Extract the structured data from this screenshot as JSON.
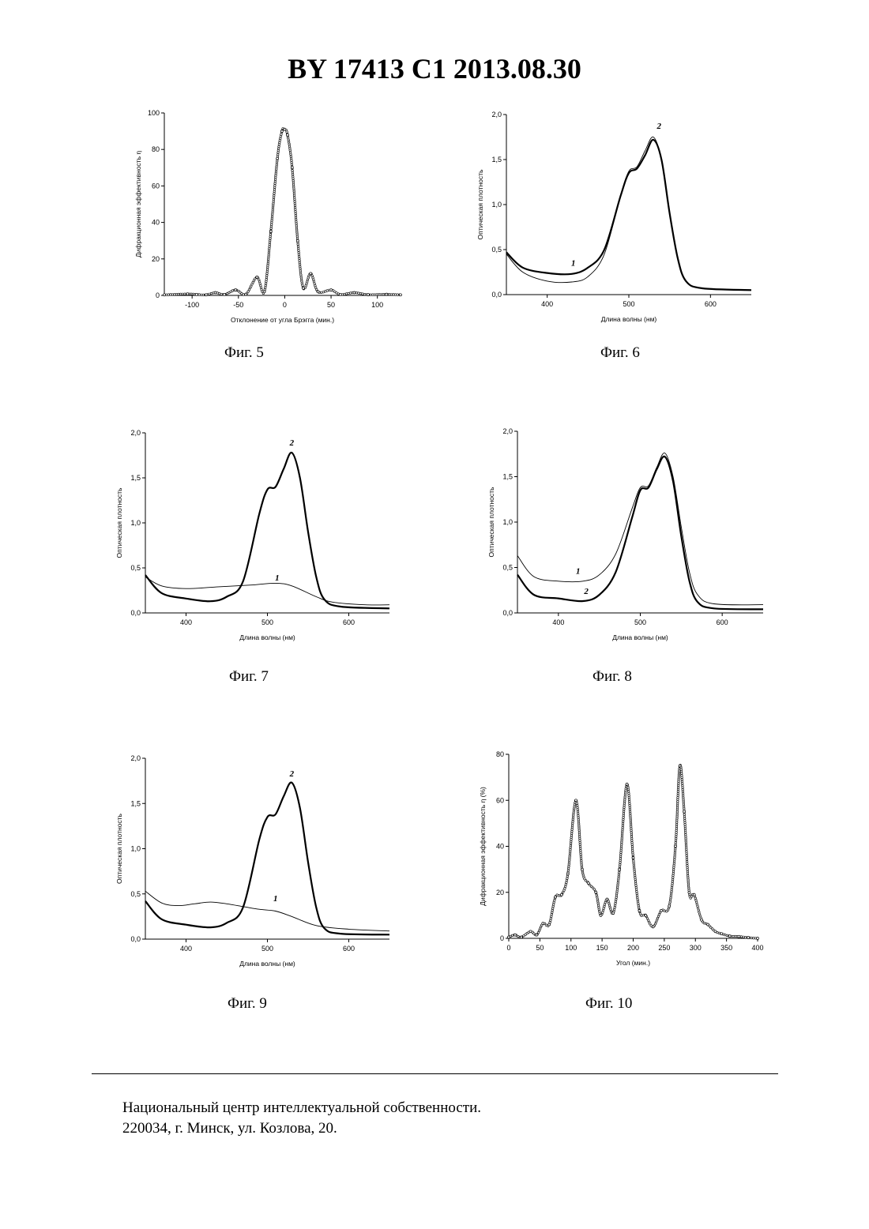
{
  "header": {
    "title": "BY  17413  C1  2013.08.30"
  },
  "figures": [
    {
      "caption": "Фиг. 5",
      "chart_data": {
        "type": "line",
        "xlabel": "Отклонение от угла Брэгга (мин.)",
        "ylabel": "Дифракционная эффективность η",
        "xlim": [
          -130,
          125
        ],
        "ylim": [
          0,
          100
        ],
        "xticks": [
          -100,
          -50,
          0,
          50,
          100
        ],
        "yticks": [
          0,
          20,
          40,
          60,
          80,
          100
        ],
        "marker": "circle",
        "series": [
          {
            "points": [
              [
                -130,
                0.3
              ],
              [
                -105,
                0.8
              ],
              [
                -95,
                0.5
              ],
              [
                -85,
                0.3
              ],
              [
                -75,
                1.5
              ],
              [
                -65,
                0.5
              ],
              [
                -53,
                3
              ],
              [
                -42,
                0.6
              ],
              [
                -30,
                10
              ],
              [
                -22,
                2
              ],
              [
                -15,
                35
              ],
              [
                -8,
                75
              ],
              [
                -3,
                90
              ],
              [
                0,
                91
              ],
              [
                3,
                88
              ],
              [
                8,
                70
              ],
              [
                14,
                30
              ],
              [
                20,
                4
              ],
              [
                28,
                12
              ],
              [
                36,
                2
              ],
              [
                50,
                3
              ],
              [
                60,
                0.5
              ],
              [
                75,
                1.5
              ],
              [
                90,
                0.4
              ],
              [
                110,
                0.6
              ],
              [
                125,
                0.3
              ]
            ]
          }
        ],
        "annotations": []
      }
    },
    {
      "caption": "Фиг. 6",
      "chart_data": {
        "type": "line",
        "xlabel": "Длина волны (нм)",
        "ylabel": "Оптическая плотность",
        "xlim": [
          350,
          650
        ],
        "ylim": [
          0,
          2
        ],
        "xticks": [
          400,
          500,
          600
        ],
        "yticks": [
          "0,0",
          "0,5",
          "1,0",
          "1,5",
          "2,0"
        ],
        "series": [
          {
            "name": "1",
            "weight": "thick",
            "points": [
              [
                350,
                0.47
              ],
              [
                370,
                0.3
              ],
              [
                400,
                0.24
              ],
              [
                430,
                0.23
              ],
              [
                450,
                0.3
              ],
              [
                470,
                0.5
              ],
              [
                490,
                1.1
              ],
              [
                500,
                1.35
              ],
              [
                510,
                1.4
              ],
              [
                520,
                1.55
              ],
              [
                530,
                1.72
              ],
              [
                540,
                1.5
              ],
              [
                550,
                0.9
              ],
              [
                560,
                0.4
              ],
              [
                570,
                0.15
              ],
              [
                590,
                0.07
              ],
              [
                650,
                0.05
              ]
            ]
          },
          {
            "name": "2",
            "weight": "thin",
            "points": [
              [
                350,
                0.45
              ],
              [
                370,
                0.25
              ],
              [
                400,
                0.15
              ],
              [
                430,
                0.14
              ],
              [
                450,
                0.2
              ],
              [
                470,
                0.45
              ],
              [
                490,
                1.1
              ],
              [
                500,
                1.37
              ],
              [
                510,
                1.42
              ],
              [
                520,
                1.6
              ],
              [
                530,
                1.75
              ],
              [
                540,
                1.5
              ],
              [
                550,
                0.9
              ],
              [
                560,
                0.4
              ],
              [
                570,
                0.15
              ],
              [
                590,
                0.07
              ],
              [
                650,
                0.05
              ]
            ]
          }
        ],
        "annotations": [
          {
            "text": "1",
            "x": 432,
            "y": 0.32
          },
          {
            "text": "2",
            "x": 537,
            "y": 1.84
          }
        ]
      }
    },
    {
      "caption": "Фиг. 7",
      "chart_data": {
        "type": "line",
        "xlabel": "Длина волны (нм)",
        "ylabel": "Оптическая плотность",
        "xlim": [
          350,
          650
        ],
        "ylim": [
          0,
          2
        ],
        "xticks": [
          400,
          500,
          600
        ],
        "yticks": [
          "0,0",
          "0,5",
          "1,0",
          "1,5",
          "2,0"
        ],
        "series": [
          {
            "name": "1",
            "weight": "thin",
            "points": [
              [
                350,
                0.4
              ],
              [
                370,
                0.3
              ],
              [
                400,
                0.27
              ],
              [
                440,
                0.29
              ],
              [
                480,
                0.31
              ],
              [
                510,
                0.33
              ],
              [
                530,
                0.3
              ],
              [
                560,
                0.18
              ],
              [
                580,
                0.12
              ],
              [
                620,
                0.09
              ],
              [
                650,
                0.09
              ]
            ]
          },
          {
            "name": "2",
            "weight": "thick",
            "points": [
              [
                350,
                0.42
              ],
              [
                370,
                0.22
              ],
              [
                400,
                0.16
              ],
              [
                430,
                0.13
              ],
              [
                450,
                0.18
              ],
              [
                470,
                0.35
              ],
              [
                490,
                1.1
              ],
              [
                500,
                1.37
              ],
              [
                510,
                1.4
              ],
              [
                520,
                1.6
              ],
              [
                530,
                1.78
              ],
              [
                540,
                1.5
              ],
              [
                550,
                0.9
              ],
              [
                560,
                0.4
              ],
              [
                570,
                0.15
              ],
              [
                590,
                0.07
              ],
              [
                650,
                0.05
              ]
            ]
          }
        ],
        "annotations": [
          {
            "text": "1",
            "x": 512,
            "y": 0.36
          },
          {
            "text": "2",
            "x": 530,
            "y": 1.86
          }
        ]
      }
    },
    {
      "caption": "Фиг. 8",
      "chart_data": {
        "type": "line",
        "xlabel": "Длина волны (нм)",
        "ylabel": "Оптическая плотность",
        "xlim": [
          350,
          650
        ],
        "ylim": [
          0,
          2
        ],
        "xticks": [
          400,
          500,
          600
        ],
        "yticks": [
          "0,0",
          "0,5",
          "1,0",
          "1,5",
          "2,0"
        ],
        "series": [
          {
            "name": "1",
            "weight": "thin",
            "points": [
              [
                350,
                0.63
              ],
              [
                370,
                0.4
              ],
              [
                400,
                0.35
              ],
              [
                430,
                0.35
              ],
              [
                450,
                0.42
              ],
              [
                470,
                0.65
              ],
              [
                490,
                1.15
              ],
              [
                500,
                1.38
              ],
              [
                510,
                1.4
              ],
              [
                520,
                1.6
              ],
              [
                530,
                1.76
              ],
              [
                540,
                1.5
              ],
              [
                550,
                0.95
              ],
              [
                560,
                0.45
              ],
              [
                570,
                0.2
              ],
              [
                590,
                0.1
              ],
              [
                650,
                0.09
              ]
            ]
          },
          {
            "name": "2",
            "weight": "thick",
            "points": [
              [
                350,
                0.42
              ],
              [
                370,
                0.2
              ],
              [
                400,
                0.16
              ],
              [
                430,
                0.13
              ],
              [
                450,
                0.2
              ],
              [
                470,
                0.45
              ],
              [
                490,
                1.05
              ],
              [
                500,
                1.35
              ],
              [
                510,
                1.38
              ],
              [
                520,
                1.58
              ],
              [
                530,
                1.72
              ],
              [
                540,
                1.45
              ],
              [
                550,
                0.85
              ],
              [
                560,
                0.35
              ],
              [
                570,
                0.12
              ],
              [
                590,
                0.05
              ],
              [
                650,
                0.04
              ]
            ]
          }
        ],
        "annotations": [
          {
            "text": "1",
            "x": 424,
            "y": 0.43
          },
          {
            "text": "2",
            "x": 434,
            "y": 0.21
          }
        ]
      }
    },
    {
      "caption": "Фиг. 9",
      "chart_data": {
        "type": "line",
        "xlabel": "Длина волны (нм)",
        "ylabel": "Оптическая плотность",
        "xlim": [
          350,
          650
        ],
        "ylim": [
          0,
          2
        ],
        "xticks": [
          400,
          500,
          600
        ],
        "yticks": [
          "0,0",
          "0,5",
          "1,0",
          "1,5",
          "2,0"
        ],
        "series": [
          {
            "name": "1",
            "weight": "thin",
            "points": [
              [
                350,
                0.53
              ],
              [
                370,
                0.4
              ],
              [
                390,
                0.37
              ],
              [
                410,
                0.39
              ],
              [
                430,
                0.41
              ],
              [
                450,
                0.39
              ],
              [
                470,
                0.36
              ],
              [
                490,
                0.33
              ],
              [
                510,
                0.31
              ],
              [
                530,
                0.25
              ],
              [
                560,
                0.15
              ],
              [
                600,
                0.11
              ],
              [
                650,
                0.09
              ]
            ]
          },
          {
            "name": "2",
            "weight": "thick",
            "points": [
              [
                350,
                0.42
              ],
              [
                370,
                0.22
              ],
              [
                400,
                0.16
              ],
              [
                430,
                0.13
              ],
              [
                450,
                0.18
              ],
              [
                470,
                0.35
              ],
              [
                490,
                1.1
              ],
              [
                500,
                1.35
              ],
              [
                510,
                1.38
              ],
              [
                520,
                1.58
              ],
              [
                530,
                1.73
              ],
              [
                540,
                1.45
              ],
              [
                550,
                0.85
              ],
              [
                560,
                0.35
              ],
              [
                570,
                0.12
              ],
              [
                590,
                0.06
              ],
              [
                650,
                0.05
              ]
            ]
          }
        ],
        "annotations": [
          {
            "text": "1",
            "x": 510,
            "y": 0.42
          },
          {
            "text": "2",
            "x": 530,
            "y": 1.8
          }
        ]
      }
    },
    {
      "caption": "Фиг. 10",
      "chart_data": {
        "type": "line",
        "xlabel": "Угол (мин.)",
        "ylabel": "Дифракционная эффективность η (%)",
        "xlim": [
          0,
          400
        ],
        "ylim": [
          0,
          80
        ],
        "xticks": [
          0,
          50,
          100,
          150,
          200,
          250,
          300,
          350,
          400
        ],
        "yticks": [
          0,
          20,
          40,
          60,
          80
        ],
        "marker": "circle",
        "series": [
          {
            "points": [
              [
                0,
                0.5
              ],
              [
                10,
                1.5
              ],
              [
                20,
                0.5
              ],
              [
                35,
                3
              ],
              [
                45,
                1.5
              ],
              [
                55,
                6.5
              ],
              [
                65,
                6
              ],
              [
                75,
                18
              ],
              [
                85,
                19
              ],
              [
                95,
                28
              ],
              [
                108,
                60
              ],
              [
                118,
                30
              ],
              [
                128,
                24
              ],
              [
                140,
                20
              ],
              [
                148,
                10
              ],
              [
                158,
                17
              ],
              [
                168,
                11
              ],
              [
                178,
                30
              ],
              [
                190,
                67
              ],
              [
                200,
                35
              ],
              [
                210,
                12
              ],
              [
                220,
                10
              ],
              [
                232,
                5
              ],
              [
                245,
                12
              ],
              [
                258,
                14
              ],
              [
                268,
                40
              ],
              [
                275,
                75
              ],
              [
                282,
                55
              ],
              [
                290,
                20
              ],
              [
                298,
                19
              ],
              [
                310,
                8
              ],
              [
                320,
                6
              ],
              [
                332,
                3
              ],
              [
                342,
                2
              ],
              [
                355,
                1
              ],
              [
                370,
                0.8
              ],
              [
                385,
                0.3
              ],
              [
                400,
                0
              ]
            ]
          }
        ],
        "annotations": []
      }
    }
  ],
  "footer": {
    "line1": "Национальный центр интеллектуальной собственности.",
    "line2": "220034, г. Минск, ул. Козлова, 20."
  }
}
